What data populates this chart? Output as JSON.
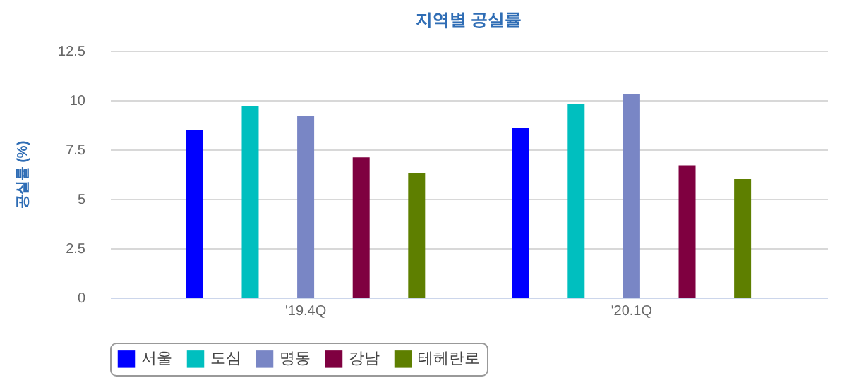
{
  "chart_data": {
    "type": "bar",
    "title": "지역별 공실률",
    "ylabel": "공실률 (%)",
    "categories": [
      "'19.4Q",
      "'20.1Q"
    ],
    "series": [
      {
        "name": "서울",
        "color": "#0000ff",
        "values": [
          8.5,
          8.6
        ]
      },
      {
        "name": "도심",
        "color": "#00bfbf",
        "values": [
          9.7,
          9.8
        ]
      },
      {
        "name": "명동",
        "color": "#7986c5",
        "values": [
          9.2,
          10.3
        ]
      },
      {
        "name": "강남",
        "color": "#7f0040",
        "values": [
          7.1,
          6.7
        ]
      },
      {
        "name": "테헤란로",
        "color": "#5e7f00",
        "values": [
          6.3,
          6.0
        ]
      }
    ],
    "ylim": [
      0,
      12.5
    ],
    "yticks": [
      0,
      2.5,
      5,
      7.5,
      10,
      12.5
    ],
    "grid": "y",
    "legend": "bottom"
  }
}
